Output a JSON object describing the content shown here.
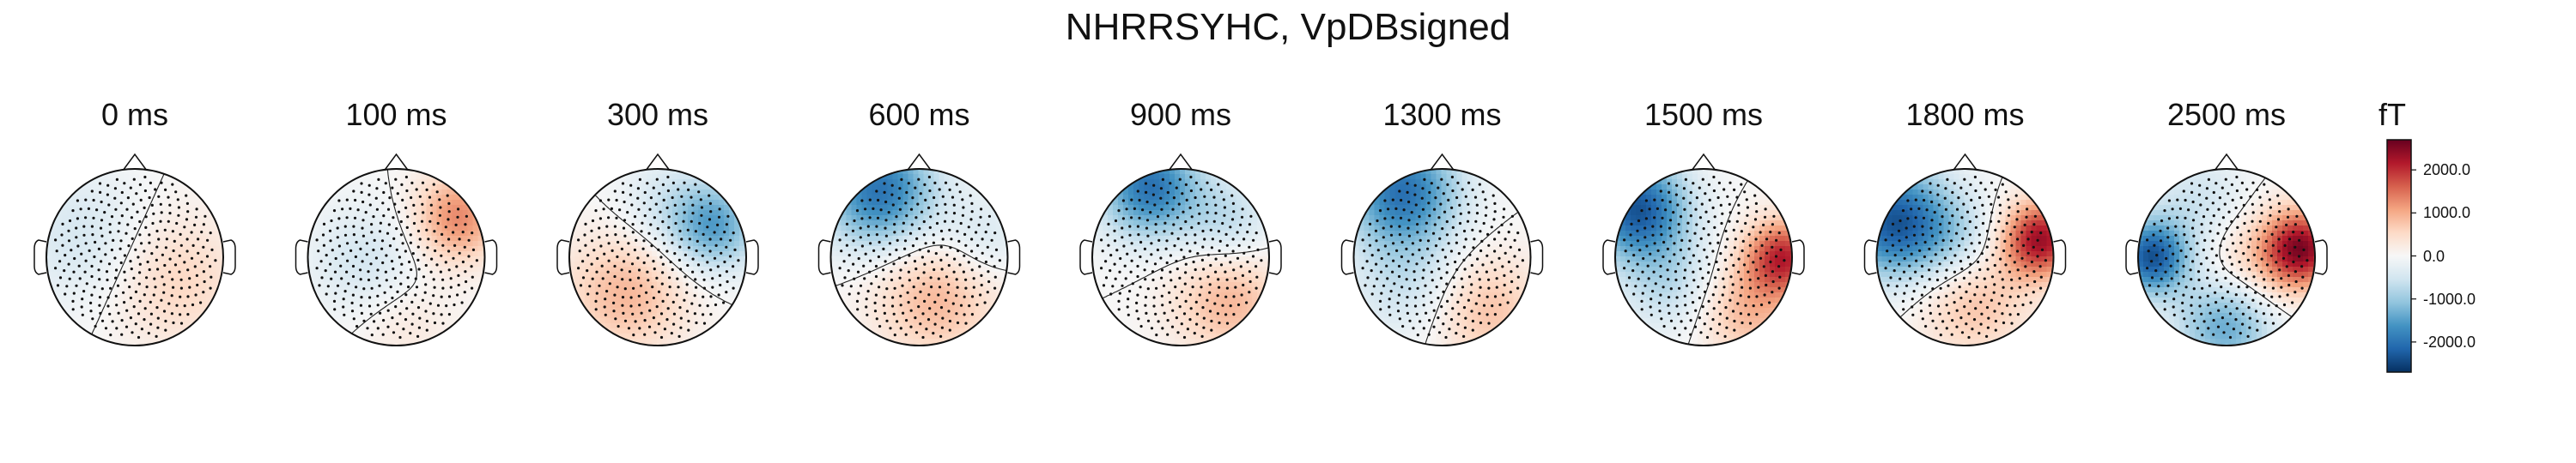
{
  "chart_data": {
    "type": "heatmap",
    "title": "NHRRSYHC, VpDBsigned",
    "panels": [
      {
        "label": "0 ms",
        "poles": [
          {
            "u": 0.45,
            "v": 0.25,
            "val": 600,
            "s": 0.55
          },
          {
            "u": -0.55,
            "v": -0.2,
            "val": -500,
            "s": 0.55
          }
        ]
      },
      {
        "label": "100 ms",
        "poles": [
          {
            "u": 0.7,
            "v": -0.45,
            "val": 1300,
            "s": 0.35
          },
          {
            "u": -0.35,
            "v": 0.05,
            "val": -500,
            "s": 0.45
          },
          {
            "u": 0.1,
            "v": 0.75,
            "val": 300,
            "s": 0.4
          }
        ]
      },
      {
        "label": "300 ms",
        "poles": [
          {
            "u": 0.65,
            "v": -0.35,
            "val": -1400,
            "s": 0.35
          },
          {
            "u": -0.35,
            "v": 0.4,
            "val": 900,
            "s": 0.5
          },
          {
            "u": 0.1,
            "v": -0.55,
            "val": -500,
            "s": 0.4
          }
        ]
      },
      {
        "label": "600 ms",
        "poles": [
          {
            "u": -0.45,
            "v": -0.75,
            "val": -2000,
            "s": 0.45
          },
          {
            "u": 0.2,
            "v": 0.45,
            "val": 900,
            "s": 0.5
          },
          {
            "u": 0.7,
            "v": -0.2,
            "val": -500,
            "s": 0.35
          }
        ]
      },
      {
        "label": "900 ms",
        "poles": [
          {
            "u": -0.35,
            "v": -0.8,
            "val": -2000,
            "s": 0.4
          },
          {
            "u": 0.55,
            "v": 0.5,
            "val": 900,
            "s": 0.45
          },
          {
            "u": 0.55,
            "v": -0.4,
            "val": -700,
            "s": 0.35
          }
        ]
      },
      {
        "label": "1300 ms",
        "poles": [
          {
            "u": -0.45,
            "v": -0.75,
            "val": -2000,
            "s": 0.45
          },
          {
            "u": 0.5,
            "v": 0.6,
            "val": 800,
            "s": 0.45
          },
          {
            "u": -0.4,
            "v": 0.3,
            "val": -600,
            "s": 0.45
          }
        ]
      },
      {
        "label": "1500 ms",
        "poles": [
          {
            "u": -0.75,
            "v": -0.55,
            "val": -2300,
            "s": 0.4
          },
          {
            "u": 0.9,
            "v": 0.0,
            "val": 2000,
            "s": 0.3
          },
          {
            "u": 0.5,
            "v": 0.6,
            "val": 900,
            "s": 0.4
          },
          {
            "u": -0.4,
            "v": 0.3,
            "val": -700,
            "s": 0.4
          }
        ]
      },
      {
        "label": "1800 ms",
        "poles": [
          {
            "u": -0.8,
            "v": -0.4,
            "val": -2300,
            "s": 0.45
          },
          {
            "u": 0.85,
            "v": -0.2,
            "val": 2300,
            "s": 0.3
          },
          {
            "u": 0.1,
            "v": 0.5,
            "val": 800,
            "s": 0.45
          },
          {
            "u": -0.1,
            "v": -0.2,
            "val": -600,
            "s": 0.35
          }
        ]
      },
      {
        "label": "2500 ms",
        "poles": [
          {
            "u": -0.85,
            "v": 0.0,
            "val": -2300,
            "s": 0.3
          },
          {
            "u": 0.85,
            "v": -0.1,
            "val": 2300,
            "s": 0.3
          },
          {
            "u": 0.0,
            "v": 0.75,
            "val": -1500,
            "s": 0.4
          },
          {
            "u": 0.3,
            "v": 0.1,
            "val": 700,
            "s": 0.45
          },
          {
            "u": -0.3,
            "v": -0.6,
            "val": -600,
            "s": 0.4
          }
        ]
      }
    ],
    "colorbar": {
      "unit": "fT",
      "range": [
        -2700,
        2700
      ],
      "ticks": [
        2000,
        1000,
        0,
        -1000,
        -2000
      ],
      "tick_labels": [
        "2000.0",
        "1000.0",
        "0.0",
        "-1000.0",
        "-2000.0"
      ],
      "colors": [
        "#053061",
        "#2166ac",
        "#4393c3",
        "#92c5de",
        "#d1e5f0",
        "#f7f7f7",
        "#fddbc7",
        "#f4a582",
        "#d6604d",
        "#b2182b",
        "#67001f"
      ]
    }
  }
}
